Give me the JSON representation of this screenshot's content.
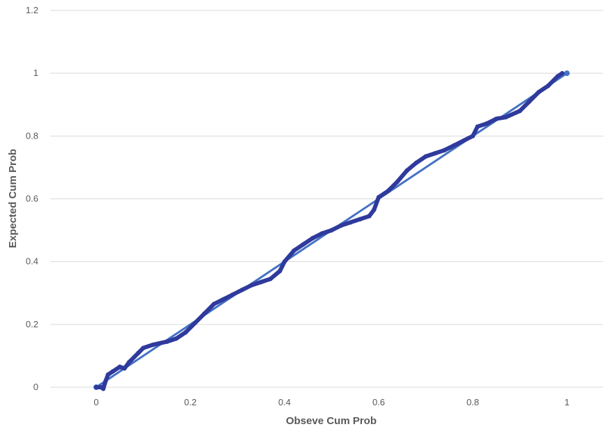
{
  "chart_data": {
    "type": "scatter",
    "title": "",
    "xlabel": "Obseve Cum Prob",
    "ylabel": "Expected Cum Prob",
    "xlim": [
      0,
      1
    ],
    "ylim": [
      0,
      1.2
    ],
    "x_ticks": [
      "0",
      "0.2",
      "0.4",
      "0.6",
      "0.8",
      "1"
    ],
    "y_ticks": [
      "0",
      "0.2",
      "0.4",
      "0.6",
      "0.8",
      "1",
      "1.2"
    ],
    "grid": true,
    "legend": "none",
    "colors": {
      "observed": "#2f3a9c",
      "reference": "#4472c4",
      "grid": "#d9d9d9",
      "text": "#595959"
    },
    "series": [
      {
        "values_xy": [
          [
            0,
            0
          ],
          [
            0.01,
            0.0
          ],
          [
            0.015,
            -0.005
          ],
          [
            0.02,
            0.02
          ],
          [
            0.025,
            0.04
          ],
          [
            0.035,
            0.05
          ],
          [
            0.05,
            0.065
          ],
          [
            0.06,
            0.06
          ],
          [
            0.07,
            0.08
          ],
          [
            0.09,
            0.11
          ],
          [
            0.1,
            0.125
          ],
          [
            0.12,
            0.135
          ],
          [
            0.15,
            0.145
          ],
          [
            0.17,
            0.155
          ],
          [
            0.19,
            0.175
          ],
          [
            0.21,
            0.205
          ],
          [
            0.23,
            0.235
          ],
          [
            0.25,
            0.265
          ],
          [
            0.27,
            0.28
          ],
          [
            0.29,
            0.295
          ],
          [
            0.31,
            0.31
          ],
          [
            0.33,
            0.325
          ],
          [
            0.35,
            0.335
          ],
          [
            0.37,
            0.345
          ],
          [
            0.39,
            0.37
          ],
          [
            0.4,
            0.4
          ],
          [
            0.42,
            0.435
          ],
          [
            0.44,
            0.455
          ],
          [
            0.46,
            0.475
          ],
          [
            0.48,
            0.49
          ],
          [
            0.5,
            0.5
          ],
          [
            0.52,
            0.515
          ],
          [
            0.54,
            0.525
          ],
          [
            0.56,
            0.535
          ],
          [
            0.58,
            0.545
          ],
          [
            0.59,
            0.565
          ],
          [
            0.6,
            0.605
          ],
          [
            0.62,
            0.625
          ],
          [
            0.64,
            0.655
          ],
          [
            0.66,
            0.69
          ],
          [
            0.68,
            0.715
          ],
          [
            0.7,
            0.735
          ],
          [
            0.72,
            0.745
          ],
          [
            0.74,
            0.755
          ],
          [
            0.76,
            0.77
          ],
          [
            0.78,
            0.785
          ],
          [
            0.8,
            0.8
          ],
          [
            0.81,
            0.83
          ],
          [
            0.83,
            0.84
          ],
          [
            0.85,
            0.855
          ],
          [
            0.87,
            0.86
          ],
          [
            0.9,
            0.88
          ],
          [
            0.92,
            0.91
          ],
          [
            0.94,
            0.94
          ],
          [
            0.96,
            0.96
          ],
          [
            0.98,
            0.99
          ],
          [
            0.99,
            1.0
          ]
        ]
      },
      {
        "values_xy": [
          [
            0,
            0
          ],
          [
            1,
            1
          ]
        ]
      }
    ]
  }
}
